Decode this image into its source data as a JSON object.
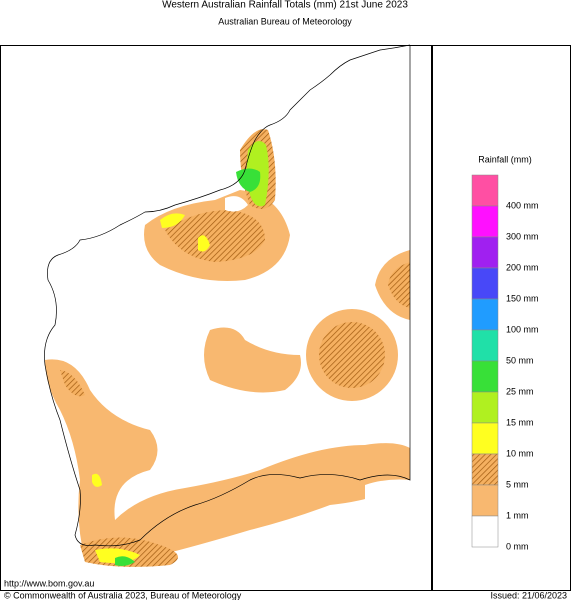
{
  "header": {
    "title": "Western Australian Rainfall Totals (mm) 21st June 2023",
    "subtitle": "Australian Bureau of Meteorology"
  },
  "legend": {
    "title": "Rainfall (mm)",
    "items": [
      {
        "label": "400 mm",
        "color": "#ff4fa3"
      },
      {
        "label": "300 mm",
        "color": "#ff10ff"
      },
      {
        "label": "200 mm",
        "color": "#a020f0"
      },
      {
        "label": "150 mm",
        "color": "#4848f8"
      },
      {
        "label": "100 mm",
        "color": "#209cff"
      },
      {
        "label": "50 mm",
        "color": "#20e0a8"
      },
      {
        "label": "25 mm",
        "color": "#38e038"
      },
      {
        "label": "15 mm",
        "color": "#b0f020"
      },
      {
        "label": "10 mm",
        "color": "#ffff20",
        "hatched": false
      },
      {
        "label": "5 mm",
        "color": "#f5b060",
        "hatched": true
      },
      {
        "label": "1 mm",
        "color": "#f8b870",
        "hatched": false
      },
      {
        "label": "0 mm",
        "color": "#ffffff"
      }
    ]
  },
  "footer": {
    "url": "http://www.bom.gov.au",
    "copyright": "© Commonwealth of Australia 2023, Bureau of Meteorology",
    "issued": "Issued: 21/06/2023"
  }
}
